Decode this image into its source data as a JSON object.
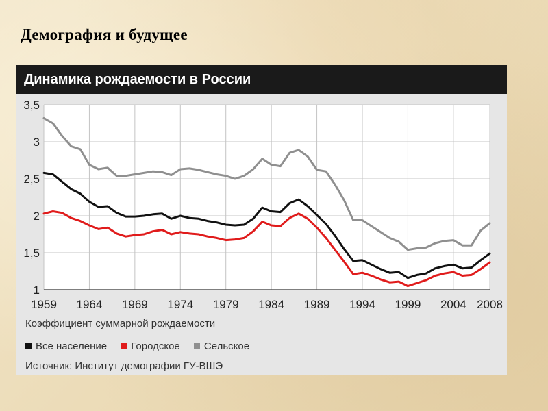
{
  "slide": {
    "title": "Демография и будущее"
  },
  "panel": {
    "title": "Динамика рождаемости в России",
    "source": "Источник: Институт демографии ГУ-ВШЭ"
  },
  "chart_data": {
    "type": "line",
    "title": "Динамика рождаемости в России",
    "xlabel": "",
    "ylabel": "Коэффициент суммарной рождаемости",
    "xlim": [
      1959,
      2008
    ],
    "ylim": [
      1,
      3.5
    ],
    "xticks": [
      1959,
      1964,
      1969,
      1974,
      1979,
      1984,
      1989,
      1994,
      1999,
      2004,
      2008
    ],
    "yticks": [
      1,
      1.5,
      2,
      2.5,
      3,
      3.5
    ],
    "ytick_labels": [
      "1",
      "1,5",
      "2",
      "2,5",
      "3",
      "3,5"
    ],
    "grid": true,
    "legend_position": "bottom",
    "x": [
      1959,
      1960,
      1961,
      1962,
      1963,
      1964,
      1965,
      1966,
      1967,
      1968,
      1969,
      1970,
      1971,
      1972,
      1973,
      1974,
      1975,
      1976,
      1977,
      1978,
      1979,
      1980,
      1981,
      1982,
      1983,
      1984,
      1985,
      1986,
      1987,
      1988,
      1989,
      1990,
      1991,
      1992,
      1993,
      1994,
      1995,
      1996,
      1997,
      1998,
      1999,
      2000,
      2001,
      2002,
      2003,
      2004,
      2005,
      2006,
      2007,
      2008
    ],
    "series": [
      {
        "name": "Все население",
        "color": "#111111",
        "values": [
          2.58,
          2.56,
          2.46,
          2.36,
          2.3,
          2.19,
          2.12,
          2.13,
          2.04,
          1.99,
          1.99,
          2.0,
          2.02,
          2.03,
          1.96,
          2.0,
          1.97,
          1.96,
          1.93,
          1.91,
          1.88,
          1.87,
          1.88,
          1.96,
          2.11,
          2.06,
          2.05,
          2.17,
          2.22,
          2.13,
          2.01,
          1.89,
          1.73,
          1.55,
          1.39,
          1.4,
          1.34,
          1.28,
          1.23,
          1.24,
          1.16,
          1.2,
          1.22,
          1.29,
          1.32,
          1.34,
          1.29,
          1.3,
          1.4,
          1.49
        ]
      },
      {
        "name": "Городское",
        "color": "#e01b1b",
        "values": [
          2.03,
          2.06,
          2.04,
          1.97,
          1.93,
          1.87,
          1.82,
          1.84,
          1.76,
          1.72,
          1.74,
          1.75,
          1.79,
          1.81,
          1.75,
          1.78,
          1.76,
          1.75,
          1.72,
          1.7,
          1.67,
          1.68,
          1.7,
          1.79,
          1.92,
          1.87,
          1.86,
          1.97,
          2.03,
          1.96,
          1.84,
          1.7,
          1.54,
          1.38,
          1.21,
          1.23,
          1.19,
          1.14,
          1.1,
          1.11,
          1.05,
          1.09,
          1.13,
          1.19,
          1.22,
          1.24,
          1.19,
          1.2,
          1.28,
          1.37
        ]
      },
      {
        "name": "Сельское",
        "color": "#8f8f8f",
        "values": [
          3.32,
          3.25,
          3.08,
          2.94,
          2.9,
          2.69,
          2.63,
          2.65,
          2.54,
          2.54,
          2.56,
          2.58,
          2.6,
          2.59,
          2.55,
          2.63,
          2.64,
          2.62,
          2.59,
          2.56,
          2.54,
          2.5,
          2.54,
          2.63,
          2.77,
          2.69,
          2.67,
          2.85,
          2.89,
          2.8,
          2.62,
          2.6,
          2.42,
          2.21,
          1.94,
          1.94,
          1.86,
          1.78,
          1.7,
          1.65,
          1.54,
          1.56,
          1.57,
          1.63,
          1.66,
          1.67,
          1.6,
          1.6,
          1.8,
          1.9
        ]
      }
    ]
  }
}
